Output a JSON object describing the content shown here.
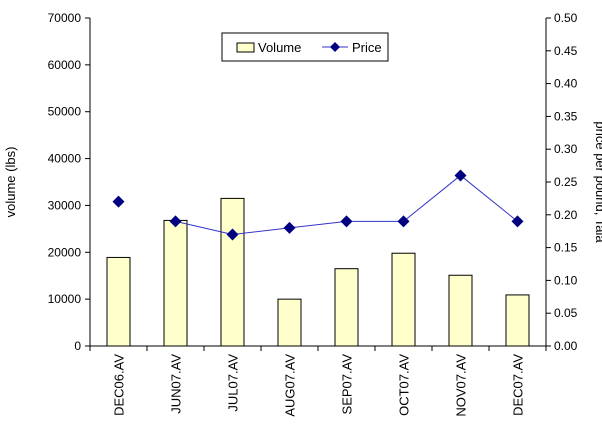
{
  "chart_data": {
    "type": "bar",
    "categories": [
      "DEC06.AV",
      "JUN07.AV",
      "JUL07.AV",
      "AUG07.AV",
      "SEP07.AV",
      "OCT07.AV",
      "NOV07.AV",
      "DEC07.AV"
    ],
    "series": [
      {
        "name": "Volume",
        "type": "bar",
        "axis": "left",
        "values": [
          18900,
          26800,
          31500,
          10000,
          16500,
          19800,
          15100,
          10900
        ]
      },
      {
        "name": "Price",
        "type": "line",
        "axis": "right",
        "values": [
          0.22,
          0.19,
          0.17,
          0.18,
          0.19,
          0.19,
          0.26,
          0.19
        ]
      }
    ],
    "ylabel": "volume (lbs)",
    "y2label": "price per pound, Tala",
    "ylim": [
      0,
      70000
    ],
    "y2lim": [
      0,
      0.5
    ],
    "yticks": [
      "0",
      "10000",
      "20000",
      "30000",
      "40000",
      "50000",
      "60000",
      "70000"
    ],
    "y2ticks": [
      "0.00",
      "0.05",
      "0.10",
      "0.15",
      "0.20",
      "0.25",
      "0.30",
      "0.35",
      "0.40",
      "0.45",
      "0.50"
    ],
    "legend_position": "top-center",
    "grid": false,
    "colors": {
      "bar_fill": "#FFFFCC",
      "bar_stroke": "#000000",
      "line": "#3333CC",
      "marker": "#000080"
    }
  }
}
